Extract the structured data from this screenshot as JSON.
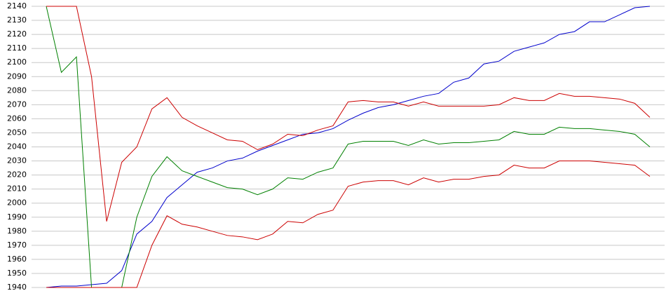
{
  "chart_data": {
    "type": "line",
    "ylim": [
      1940,
      2140
    ],
    "yticks": [
      1940,
      1950,
      1960,
      1970,
      1980,
      1990,
      2000,
      2010,
      2020,
      2030,
      2040,
      2050,
      2060,
      2070,
      2080,
      2090,
      2100,
      2110,
      2120,
      2130,
      2140
    ],
    "grid": true,
    "series": [
      {
        "color": "#0000cc",
        "values": [
          1940,
          1941,
          1941,
          1942,
          1943,
          1952,
          1978,
          1987,
          2004,
          2013,
          2022,
          2025,
          2030,
          2032,
          2037,
          2041,
          2045,
          2049,
          2050,
          2053,
          2059,
          2064,
          2068,
          2070,
          2073,
          2076,
          2078,
          2086,
          2089,
          2099,
          2101,
          2108,
          2111,
          2114,
          2120,
          2122,
          2129,
          2129,
          2134,
          2139,
          2140
        ]
      },
      {
        "color": "#008000",
        "values": [
          2140,
          2093,
          2104,
          1940,
          1940,
          1940,
          1990,
          2019,
          2033,
          2023,
          2019,
          2015,
          2011,
          2010,
          2006,
          2010,
          2018,
          2017,
          2022,
          2025,
          2042,
          2044,
          2044,
          2044,
          2041,
          2045,
          2042,
          2043,
          2043,
          2044,
          2045,
          2051,
          2049,
          2049,
          2054,
          2053,
          2053,
          2052,
          2051,
          2049,
          2040
        ]
      },
      {
        "color": "#cc0000",
        "values": [
          2140,
          2140,
          2140,
          2090,
          1987,
          2029,
          2040,
          2067,
          2075,
          2061,
          2055,
          2050,
          2045,
          2044,
          2038,
          2042,
          2049,
          2048,
          2052,
          2055,
          2072,
          2073,
          2072,
          2072,
          2069,
          2072,
          2069,
          2069,
          2069,
          2069,
          2070,
          2075,
          2073,
          2073,
          2078,
          2076,
          2076,
          2075,
          2074,
          2071,
          2061
        ]
      },
      {
        "color": "#cc0000",
        "values": [
          1940,
          1940,
          1940,
          1940,
          1940,
          1940,
          1940,
          1970,
          1991,
          1985,
          1983,
          1980,
          1977,
          1976,
          1974,
          1978,
          1987,
          1986,
          1992,
          1995,
          2012,
          2015,
          2016,
          2016,
          2013,
          2018,
          2015,
          2017,
          2017,
          2019,
          2020,
          2027,
          2025,
          2025,
          2030,
          2030,
          2030,
          2029,
          2028,
          2027,
          2019
        ]
      }
    ]
  }
}
